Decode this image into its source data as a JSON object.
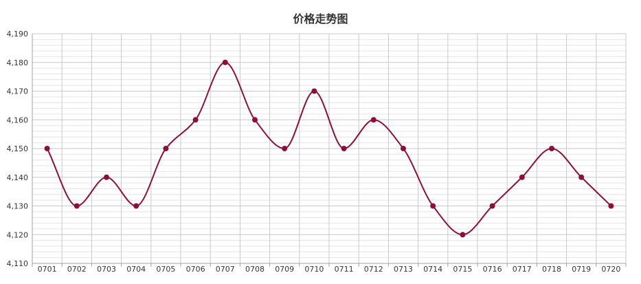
{
  "chart_data": {
    "type": "line",
    "title": "价格走势图",
    "xlabel": "",
    "ylabel": "",
    "categories": [
      "0701",
      "0702",
      "0703",
      "0704",
      "0705",
      "0706",
      "0707",
      "0708",
      "0709",
      "0710",
      "0711",
      "0712",
      "0713",
      "0714",
      "0715",
      "0716",
      "0717",
      "0718",
      "0719",
      "0720"
    ],
    "series": [
      {
        "name": "",
        "values": [
          4150,
          4130,
          4140,
          4130,
          4150,
          4160,
          4180,
          4160,
          4150,
          4170,
          4150,
          4160,
          4150,
          4130,
          4120,
          4130,
          4140,
          4150,
          4140,
          4130
        ]
      }
    ],
    "ylim": [
      4110,
      4190
    ],
    "yticks": [
      4110,
      4120,
      4130,
      4140,
      4150,
      4160,
      4170,
      4180,
      4190
    ],
    "ytick_labels": [
      "4,110",
      "4,120",
      "4,130",
      "4,140",
      "4,150",
      "4,160",
      "4,170",
      "4,180",
      "4,190"
    ],
    "grid": true,
    "line_color": "#8b1038",
    "legend": "none"
  }
}
